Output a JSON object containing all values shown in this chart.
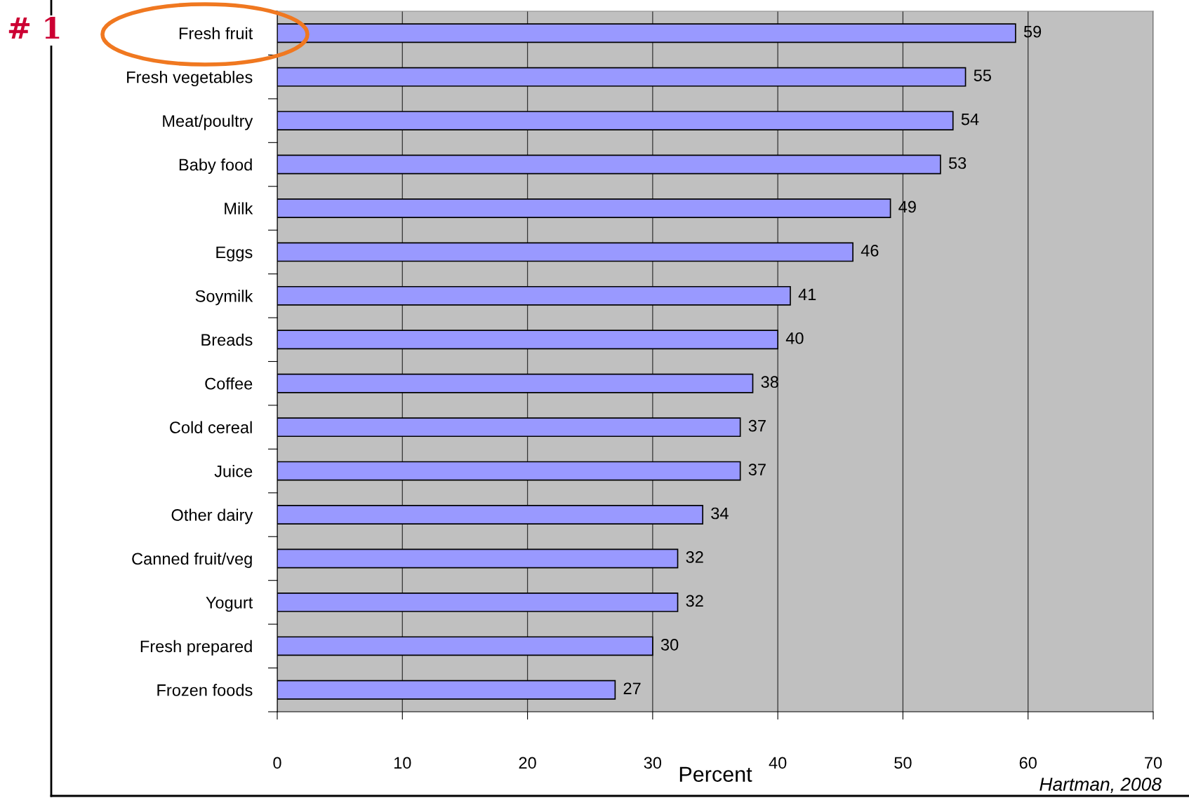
{
  "chart_data": {
    "type": "bar",
    "orientation": "horizontal",
    "xlabel": "Percent",
    "categories": [
      "Fresh fruit",
      "Fresh vegetables",
      "Meat/poultry",
      "Baby food",
      "Milk",
      "Eggs",
      "Soymilk",
      "Breads",
      "Coffee",
      "Cold cereal",
      "Juice",
      "Other dairy",
      "Canned fruit/veg",
      "Yogurt",
      "Fresh prepared",
      "Frozen foods"
    ],
    "values": [
      59,
      55,
      54,
      53,
      49,
      46,
      41,
      40,
      38,
      37,
      37,
      34,
      32,
      32,
      30,
      27
    ],
    "color": "#9999ff",
    "xlim": [
      0,
      70
    ],
    "xticks": [
      0,
      10,
      20,
      30,
      40,
      50,
      60,
      70
    ],
    "grid": "x",
    "data_labels": true,
    "annotations": [
      "# 1",
      "Hartman, 2008"
    ]
  }
}
